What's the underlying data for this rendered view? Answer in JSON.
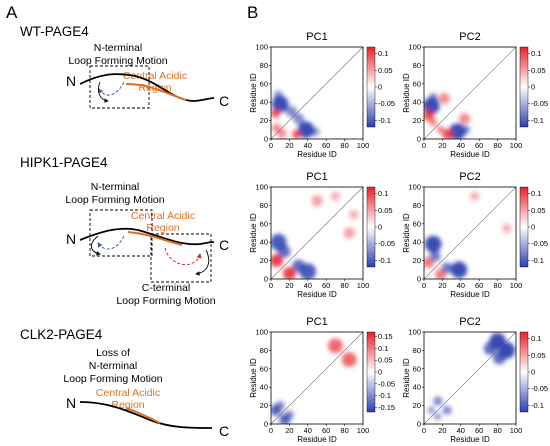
{
  "panels": {
    "a": {
      "letter": "A"
    },
    "b": {
      "letter": "B"
    }
  },
  "constructs": [
    {
      "name": "WT-PAGE4",
      "motions": [
        [
          "N-terminal",
          "Loop Forming Motion"
        ]
      ],
      "acidic": [
        "Central Acidic",
        "Region"
      ],
      "n_label": "N",
      "c_label": "C"
    },
    {
      "name": "HIPK1-PAGE4",
      "motions": [
        [
          "N-terminal",
          "Loop Forming Motion"
        ],
        [
          "C-terminal",
          "Loop Forming Motion"
        ]
      ],
      "acidic": [
        "Central Acidic",
        "Region"
      ],
      "n_label": "N",
      "c_label": "C"
    },
    {
      "name": "CLK2-PAGE4",
      "motions": [
        [
          "Loss of",
          "N-terminal",
          "Loop Forming Motion"
        ]
      ],
      "acidic": [
        "Central Acidic",
        "Region"
      ],
      "n_label": "N",
      "c_label": "C"
    }
  ],
  "colors": {
    "acidic_text": "#e07020",
    "positive": "#e8202a",
    "negative": "#2b3fae",
    "loop_n": "#3a5aa8",
    "loop_c": "#d8202a"
  },
  "chart_data": [
    {
      "type": "heatmap",
      "construct": "WT-PAGE4",
      "title": "PC1",
      "xlabel": "Residue ID",
      "ylabel": "Residue ID",
      "x_ticks": [
        "0",
        "20",
        "40",
        "60",
        "80",
        "100"
      ],
      "y_ticks": [
        "0",
        "20",
        "40",
        "60",
        "80",
        "100"
      ],
      "xlim": [
        0,
        100
      ],
      "ylim": [
        0,
        100
      ],
      "colorbar_ticks": [
        "0.1",
        "0.05",
        "0",
        "-0.05",
        "-0.1"
      ],
      "colorbar_range": [
        -0.12,
        0.12
      ],
      "regions": [
        {
          "x": 10,
          "y": 38,
          "r": 9,
          "value": -0.1
        },
        {
          "x": 38,
          "y": 10,
          "r": 9,
          "value": -0.1
        },
        {
          "x": 22,
          "y": 30,
          "r": 6,
          "value": -0.06
        },
        {
          "x": 30,
          "y": 22,
          "r": 6,
          "value": -0.06
        },
        {
          "x": 5,
          "y": 28,
          "r": 5,
          "value": 0.08
        },
        {
          "x": 28,
          "y": 5,
          "r": 5,
          "value": 0.08
        },
        {
          "x": 6,
          "y": 12,
          "r": 5,
          "value": 0.05
        },
        {
          "x": 12,
          "y": 6,
          "r": 5,
          "value": 0.05
        },
        {
          "x": 48,
          "y": 8,
          "r": 5,
          "value": -0.05
        },
        {
          "x": 8,
          "y": 48,
          "r": 5,
          "value": -0.05
        }
      ]
    },
    {
      "type": "heatmap",
      "construct": "WT-PAGE4",
      "title": "PC2",
      "xlabel": "Residue ID",
      "ylabel": "Residue ID",
      "x_ticks": [
        "0",
        "20",
        "40",
        "60",
        "80",
        "100"
      ],
      "y_ticks": [
        "0",
        "20",
        "40",
        "60",
        "80",
        "100"
      ],
      "xlim": [
        0,
        100
      ],
      "ylim": [
        0,
        100
      ],
      "colorbar_ticks": [
        "0.1",
        "0.05",
        "0",
        "-0.05",
        "-0.1"
      ],
      "colorbar_range": [
        -0.12,
        0.12
      ],
      "regions": [
        {
          "x": 8,
          "y": 36,
          "r": 9,
          "value": -0.1
        },
        {
          "x": 36,
          "y": 8,
          "r": 9,
          "value": -0.1
        },
        {
          "x": 5,
          "y": 26,
          "r": 6,
          "value": 0.08
        },
        {
          "x": 26,
          "y": 5,
          "r": 6,
          "value": 0.08
        },
        {
          "x": 22,
          "y": 44,
          "r": 6,
          "value": 0.05
        },
        {
          "x": 44,
          "y": 22,
          "r": 6,
          "value": 0.05
        },
        {
          "x": 45,
          "y": 10,
          "r": 5,
          "value": -0.06
        },
        {
          "x": 10,
          "y": 45,
          "r": 5,
          "value": -0.06
        },
        {
          "x": 10,
          "y": 18,
          "r": 4,
          "value": 0.06
        },
        {
          "x": 18,
          "y": 10,
          "r": 4,
          "value": 0.06
        }
      ]
    },
    {
      "type": "heatmap",
      "construct": "HIPK1-PAGE4",
      "title": "PC1",
      "xlabel": "Residue ID",
      "ylabel": "Residue ID",
      "x_ticks": [
        "0",
        "20",
        "40",
        "60",
        "80",
        "100"
      ],
      "y_ticks": [
        "0",
        "20",
        "40",
        "60",
        "80",
        "100"
      ],
      "xlim": [
        0,
        100
      ],
      "ylim": [
        0,
        100
      ],
      "colorbar_ticks": [
        "0.1",
        "0.05",
        "0",
        "-0.05",
        "-0.1"
      ],
      "colorbar_range": [
        -0.12,
        0.12
      ],
      "regions": [
        {
          "x": 8,
          "y": 40,
          "r": 9,
          "value": -0.09
        },
        {
          "x": 40,
          "y": 8,
          "r": 9,
          "value": -0.09
        },
        {
          "x": 6,
          "y": 20,
          "r": 7,
          "value": 0.09
        },
        {
          "x": 20,
          "y": 6,
          "r": 7,
          "value": 0.09
        },
        {
          "x": 30,
          "y": 14,
          "r": 7,
          "value": -0.08
        },
        {
          "x": 14,
          "y": 30,
          "r": 7,
          "value": -0.08
        },
        {
          "x": 50,
          "y": 85,
          "r": 6,
          "value": 0.04
        },
        {
          "x": 85,
          "y": 50,
          "r": 6,
          "value": 0.04
        },
        {
          "x": 70,
          "y": 90,
          "r": 5,
          "value": 0.03
        },
        {
          "x": 90,
          "y": 70,
          "r": 5,
          "value": 0.03
        }
      ]
    },
    {
      "type": "heatmap",
      "construct": "HIPK1-PAGE4",
      "title": "PC2",
      "xlabel": "Residue ID",
      "ylabel": "Residue ID",
      "x_ticks": [
        "0",
        "20",
        "40",
        "60",
        "80",
        "100"
      ],
      "y_ticks": [
        "0",
        "20",
        "40",
        "60",
        "80",
        "100"
      ],
      "xlim": [
        0,
        100
      ],
      "ylim": [
        0,
        100
      ],
      "colorbar_ticks": [
        "0.1",
        "0.05",
        "0",
        "-0.05",
        "-0.1"
      ],
      "colorbar_range": [
        -0.12,
        0.12
      ],
      "regions": [
        {
          "x": 10,
          "y": 38,
          "r": 9,
          "value": -0.1
        },
        {
          "x": 38,
          "y": 10,
          "r": 9,
          "value": -0.1
        },
        {
          "x": 5,
          "y": 18,
          "r": 6,
          "value": 0.06
        },
        {
          "x": 18,
          "y": 5,
          "r": 6,
          "value": 0.06
        },
        {
          "x": 25,
          "y": 12,
          "r": 6,
          "value": -0.07
        },
        {
          "x": 12,
          "y": 25,
          "r": 6,
          "value": -0.07
        },
        {
          "x": 55,
          "y": 90,
          "r": 5,
          "value": 0.03
        },
        {
          "x": 90,
          "y": 55,
          "r": 5,
          "value": 0.03
        }
      ]
    },
    {
      "type": "heatmap",
      "construct": "CLK2-PAGE4",
      "title": "PC1",
      "xlabel": "Residue ID",
      "ylabel": "Residue ID",
      "x_ticks": [
        "0",
        "20",
        "40",
        "60",
        "80",
        "100"
      ],
      "y_ticks": [
        "0",
        "20",
        "40",
        "60",
        "80",
        "100"
      ],
      "xlim": [
        0,
        100
      ],
      "ylim": [
        0,
        100
      ],
      "colorbar_ticks": [
        "0.15",
        "0.1",
        "0.05",
        "0",
        "-0.05",
        "-0.1",
        "-0.15"
      ],
      "colorbar_range": [
        -0.17,
        0.17
      ],
      "regions": [
        {
          "x": 85,
          "y": 70,
          "r": 8,
          "value": 0.1
        },
        {
          "x": 70,
          "y": 85,
          "r": 8,
          "value": 0.1
        },
        {
          "x": 15,
          "y": 5,
          "r": 6,
          "value": -0.12
        },
        {
          "x": 5,
          "y": 15,
          "r": 6,
          "value": -0.12
        },
        {
          "x": 20,
          "y": 10,
          "r": 5,
          "value": -0.08
        },
        {
          "x": 10,
          "y": 20,
          "r": 5,
          "value": -0.08
        }
      ]
    },
    {
      "type": "heatmap",
      "construct": "CLK2-PAGE4",
      "title": "PC2",
      "xlabel": "Residue ID",
      "ylabel": "Residue ID",
      "x_ticks": [
        "0",
        "20",
        "40",
        "60",
        "80",
        "100"
      ],
      "y_ticks": [
        "0",
        "20",
        "40",
        "60",
        "80",
        "100"
      ],
      "xlim": [
        0,
        100
      ],
      "ylim": [
        0,
        100
      ],
      "colorbar_ticks": [
        "0.1",
        "0.05",
        "0",
        "-0.05",
        "-0.1"
      ],
      "colorbar_range": [
        -0.12,
        0.12
      ],
      "regions": [
        {
          "x": 80,
          "y": 90,
          "r": 9,
          "value": -0.1
        },
        {
          "x": 90,
          "y": 80,
          "r": 9,
          "value": -0.1
        },
        {
          "x": 72,
          "y": 82,
          "r": 7,
          "value": -0.08
        },
        {
          "x": 82,
          "y": 72,
          "r": 7,
          "value": -0.08
        },
        {
          "x": 15,
          "y": 25,
          "r": 5,
          "value": -0.06
        },
        {
          "x": 25,
          "y": 15,
          "r": 5,
          "value": -0.06
        },
        {
          "x": 8,
          "y": 15,
          "r": 4,
          "value": -0.05
        },
        {
          "x": 15,
          "y": 8,
          "r": 4,
          "value": -0.05
        }
      ]
    }
  ]
}
